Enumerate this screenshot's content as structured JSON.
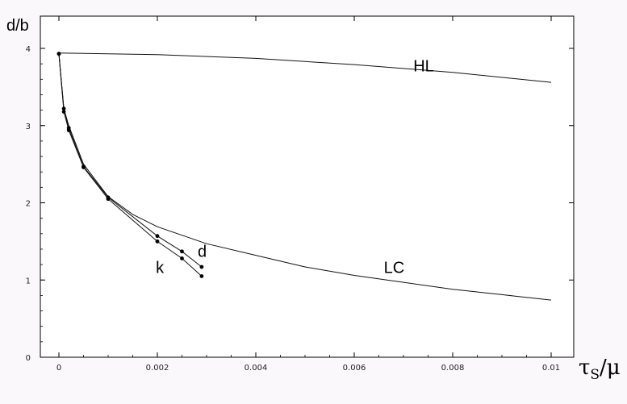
{
  "chart_data": {
    "type": "line",
    "ylabel": "d/b",
    "xlabel": "τ_S/μ",
    "xlabel_parts": {
      "main": "τ",
      "sub": "S",
      "rest": "/μ"
    },
    "xlim": [
      0,
      0.01
    ],
    "ylim": [
      0,
      4
    ],
    "x_ticks": [
      0,
      0.002,
      0.004,
      0.006,
      0.008,
      0.01
    ],
    "x_tick_labels": [
      "0",
      "0.002",
      "0.004",
      "0.006",
      "0.008",
      "0.01"
    ],
    "y_ticks": [
      0,
      1,
      2,
      3,
      4
    ],
    "y_tick_labels": [
      "0",
      "1",
      "2",
      "3",
      "4"
    ],
    "grid": false,
    "series": [
      {
        "name": "HL",
        "markers": false,
        "x": [
          0,
          0.002,
          0.004,
          0.006,
          0.008,
          0.01
        ],
        "y": [
          3.94,
          3.92,
          3.87,
          3.79,
          3.69,
          3.56
        ]
      },
      {
        "name": "LC",
        "markers": false,
        "x": [
          0,
          0.0001,
          0.0002,
          0.0005,
          0.001,
          0.0015,
          0.002,
          0.003,
          0.004,
          0.005,
          0.006,
          0.007,
          0.008,
          0.009,
          0.01
        ],
        "y": [
          3.93,
          3.22,
          3.0,
          2.5,
          2.08,
          1.85,
          1.69,
          1.47,
          1.32,
          1.17,
          1.06,
          0.97,
          0.88,
          0.81,
          0.74
        ]
      },
      {
        "name": "d",
        "markers": true,
        "x": [
          0,
          0.0001,
          0.0002,
          0.0005,
          0.001,
          0.002,
          0.0025,
          0.0029
        ],
        "y": [
          3.93,
          3.22,
          2.97,
          2.47,
          2.07,
          1.57,
          1.37,
          1.17
        ]
      },
      {
        "name": "k",
        "markers": true,
        "x": [
          0,
          0.0001,
          0.0002,
          0.0005,
          0.001,
          0.002,
          0.0025,
          0.0029
        ],
        "y": [
          3.93,
          3.18,
          2.94,
          2.46,
          2.05,
          1.5,
          1.28,
          1.05
        ]
      }
    ],
    "annotations": [
      {
        "text": "HL",
        "x": 0.0072,
        "y": 3.7
      },
      {
        "text": "LC",
        "x": 0.0066,
        "y": 1.09
      },
      {
        "text": "d",
        "x": 0.00282,
        "y": 1.3
      },
      {
        "text": "k",
        "x": 0.00197,
        "y": 1.09
      }
    ]
  }
}
